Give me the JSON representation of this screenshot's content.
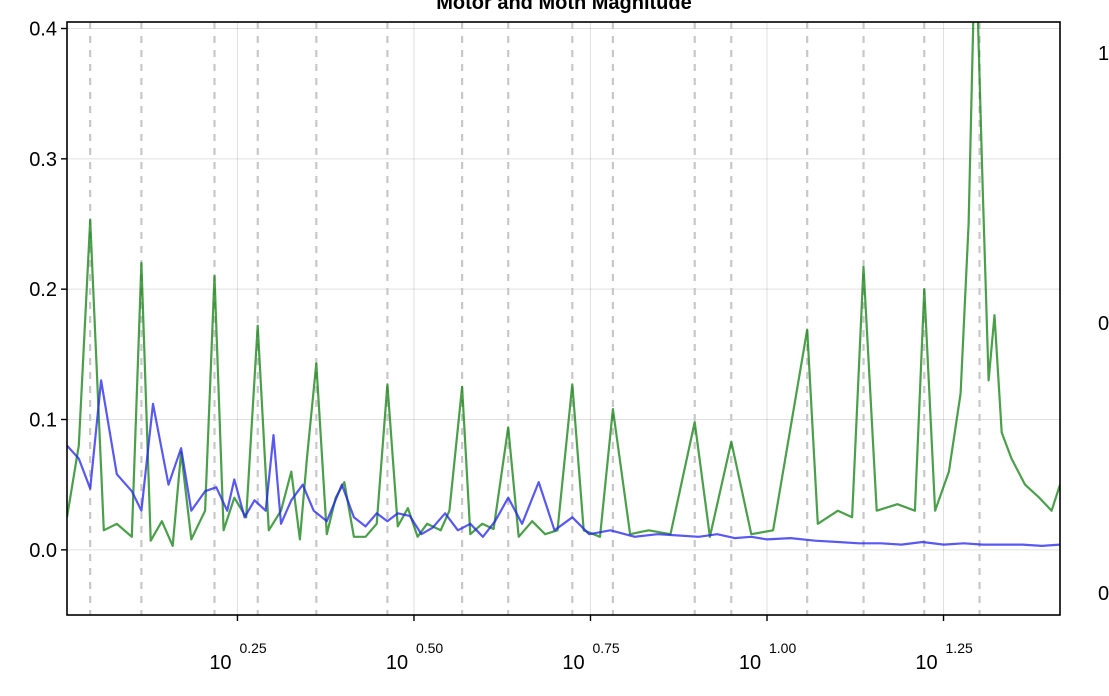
{
  "chart_data": {
    "type": "line",
    "title": "Motor and Moth Magnitude",
    "xlabel": "",
    "ylabel": "",
    "x_scale": "log10",
    "xlim": [
      1.02,
      26.0
    ],
    "ylim": [
      -0.05,
      0.405
    ],
    "x_ticks": [
      {
        "base": "10",
        "exp": "0.25",
        "value": 1.7783
      },
      {
        "base": "10",
        "exp": "0.50",
        "value": 3.1623
      },
      {
        "base": "10",
        "exp": "0.75",
        "value": 5.6234
      },
      {
        "base": "10",
        "exp": "1.00",
        "value": 10.0
      },
      {
        "base": "10",
        "exp": "1.25",
        "value": 17.7828
      }
    ],
    "y_ticks": [
      {
        "label": "0.0",
        "value": 0.0
      },
      {
        "label": "0.1",
        "value": 0.1
      },
      {
        "label": "0.2",
        "value": 0.2
      },
      {
        "label": "0.3",
        "value": 0.3
      },
      {
        "label": "0.4",
        "value": 0.4
      }
    ],
    "right_axis_tick_labels": [
      "1",
      "0",
      "0"
    ],
    "grid": true,
    "reference_lines_x": [
      1.1,
      1.3,
      1.65,
      1.9,
      2.3,
      2.9,
      3.7,
      4.3,
      5.3,
      6.05,
      7.9,
      8.9,
      11.4,
      13.7,
      16.7,
      20.0
    ],
    "colors": {
      "green_series": "#0f7f0f",
      "blue_series": "#2222ee",
      "reference_line": "#c8c8c8"
    },
    "series": [
      {
        "color": "#0f7f0f",
        "points": [
          [
            1.02,
            0.025
          ],
          [
            1.06,
            0.08
          ],
          [
            1.1,
            0.253
          ],
          [
            1.15,
            0.015
          ],
          [
            1.2,
            0.02
          ],
          [
            1.26,
            0.01
          ],
          [
            1.3,
            0.22
          ],
          [
            1.34,
            0.007
          ],
          [
            1.39,
            0.022
          ],
          [
            1.44,
            0.003
          ],
          [
            1.48,
            0.075
          ],
          [
            1.53,
            0.008
          ],
          [
            1.6,
            0.03
          ],
          [
            1.65,
            0.21
          ],
          [
            1.7,
            0.015
          ],
          [
            1.76,
            0.04
          ],
          [
            1.83,
            0.025
          ],
          [
            1.9,
            0.172
          ],
          [
            1.97,
            0.015
          ],
          [
            2.05,
            0.03
          ],
          [
            2.12,
            0.06
          ],
          [
            2.18,
            0.008
          ],
          [
            2.23,
            0.07
          ],
          [
            2.3,
            0.143
          ],
          [
            2.38,
            0.012
          ],
          [
            2.45,
            0.04
          ],
          [
            2.52,
            0.052
          ],
          [
            2.6,
            0.01
          ],
          [
            2.7,
            0.01
          ],
          [
            2.8,
            0.02
          ],
          [
            2.9,
            0.127
          ],
          [
            3.0,
            0.018
          ],
          [
            3.1,
            0.032
          ],
          [
            3.2,
            0.01
          ],
          [
            3.3,
            0.02
          ],
          [
            3.45,
            0.015
          ],
          [
            3.55,
            0.03
          ],
          [
            3.7,
            0.125
          ],
          [
            3.8,
            0.012
          ],
          [
            3.95,
            0.02
          ],
          [
            4.1,
            0.016
          ],
          [
            4.3,
            0.094
          ],
          [
            4.45,
            0.01
          ],
          [
            4.65,
            0.022
          ],
          [
            4.85,
            0.012
          ],
          [
            5.05,
            0.015
          ],
          [
            5.3,
            0.127
          ],
          [
            5.5,
            0.015
          ],
          [
            5.8,
            0.01
          ],
          [
            6.05,
            0.108
          ],
          [
            6.4,
            0.012
          ],
          [
            6.8,
            0.015
          ],
          [
            7.3,
            0.012
          ],
          [
            7.9,
            0.098
          ],
          [
            8.3,
            0.01
          ],
          [
            8.9,
            0.083
          ],
          [
            9.5,
            0.012
          ],
          [
            10.2,
            0.015
          ],
          [
            11.4,
            0.169
          ],
          [
            11.8,
            0.02
          ],
          [
            12.6,
            0.03
          ],
          [
            13.2,
            0.025
          ],
          [
            13.7,
            0.217
          ],
          [
            14.3,
            0.03
          ],
          [
            15.3,
            0.035
          ],
          [
            16.2,
            0.03
          ],
          [
            16.7,
            0.2
          ],
          [
            17.3,
            0.03
          ],
          [
            18.1,
            0.06
          ],
          [
            18.8,
            0.12
          ],
          [
            19.3,
            0.25
          ],
          [
            19.6,
            0.41
          ],
          [
            19.9,
            0.405
          ],
          [
            20.2,
            0.28
          ],
          [
            20.6,
            0.13
          ],
          [
            21.0,
            0.18
          ],
          [
            21.5,
            0.09
          ],
          [
            22.2,
            0.07
          ],
          [
            23.2,
            0.05
          ],
          [
            24.3,
            0.04
          ],
          [
            25.3,
            0.03
          ],
          [
            26.0,
            0.05
          ]
        ]
      },
      {
        "color": "#2222ee",
        "points": [
          [
            1.02,
            0.08
          ],
          [
            1.06,
            0.07
          ],
          [
            1.1,
            0.047
          ],
          [
            1.14,
            0.13
          ],
          [
            1.2,
            0.058
          ],
          [
            1.26,
            0.045
          ],
          [
            1.3,
            0.03
          ],
          [
            1.35,
            0.112
          ],
          [
            1.42,
            0.05
          ],
          [
            1.48,
            0.078
          ],
          [
            1.53,
            0.03
          ],
          [
            1.6,
            0.045
          ],
          [
            1.66,
            0.048
          ],
          [
            1.72,
            0.03
          ],
          [
            1.76,
            0.054
          ],
          [
            1.82,
            0.025
          ],
          [
            1.88,
            0.038
          ],
          [
            1.95,
            0.03
          ],
          [
            2.0,
            0.088
          ],
          [
            2.05,
            0.02
          ],
          [
            2.12,
            0.038
          ],
          [
            2.2,
            0.05
          ],
          [
            2.28,
            0.03
          ],
          [
            2.38,
            0.022
          ],
          [
            2.5,
            0.05
          ],
          [
            2.6,
            0.025
          ],
          [
            2.7,
            0.018
          ],
          [
            2.8,
            0.028
          ],
          [
            2.9,
            0.022
          ],
          [
            3.0,
            0.028
          ],
          [
            3.12,
            0.026
          ],
          [
            3.24,
            0.012
          ],
          [
            3.36,
            0.017
          ],
          [
            3.5,
            0.028
          ],
          [
            3.65,
            0.015
          ],
          [
            3.8,
            0.02
          ],
          [
            3.96,
            0.01
          ],
          [
            4.12,
            0.022
          ],
          [
            4.3,
            0.04
          ],
          [
            4.5,
            0.02
          ],
          [
            4.75,
            0.052
          ],
          [
            5.0,
            0.015
          ],
          [
            5.3,
            0.025
          ],
          [
            5.6,
            0.012
          ],
          [
            6.0,
            0.015
          ],
          [
            6.5,
            0.01
          ],
          [
            7.0,
            0.012
          ],
          [
            7.5,
            0.011
          ],
          [
            8.0,
            0.01
          ],
          [
            8.5,
            0.012
          ],
          [
            9.0,
            0.009
          ],
          [
            9.5,
            0.01
          ],
          [
            10.0,
            0.008
          ],
          [
            10.8,
            0.009
          ],
          [
            11.7,
            0.007
          ],
          [
            12.6,
            0.006
          ],
          [
            13.5,
            0.005
          ],
          [
            14.5,
            0.005
          ],
          [
            15.5,
            0.004
          ],
          [
            16.6,
            0.006
          ],
          [
            17.8,
            0.004
          ],
          [
            19.0,
            0.005
          ],
          [
            20.2,
            0.004
          ],
          [
            21.5,
            0.004
          ],
          [
            23.0,
            0.004
          ],
          [
            24.5,
            0.003
          ],
          [
            26.0,
            0.004
          ]
        ]
      }
    ]
  }
}
